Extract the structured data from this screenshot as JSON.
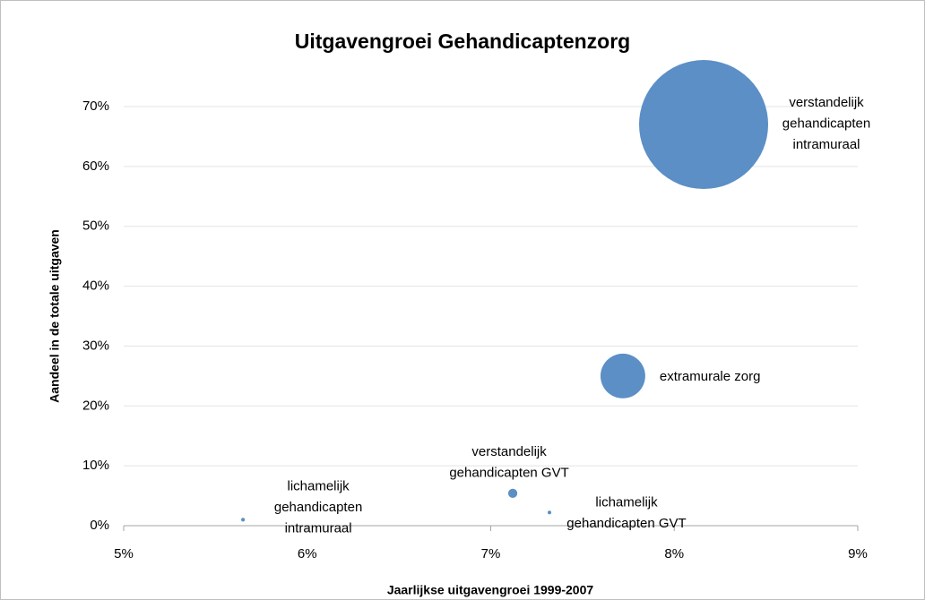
{
  "chart_data": {
    "type": "bubble",
    "title": "Uitgavengroei Gehandicaptenzorg",
    "x_label": "Jaarlijkse uitgavengroei 1999-2007",
    "y_label": "Aandeel in de totale uitgaven",
    "color": "#5b8fc6",
    "grid": true,
    "xlim": [
      5,
      9
    ],
    "ylim": [
      0,
      70
    ],
    "xticks": [
      {
        "value": 5,
        "label": "5%"
      },
      {
        "value": 6,
        "label": "6%"
      },
      {
        "value": 7,
        "label": "7%"
      },
      {
        "value": 8,
        "label": "8%"
      },
      {
        "value": 9,
        "label": "9%"
      }
    ],
    "yticks": [
      {
        "value": 0,
        "label": "0%"
      },
      {
        "value": 10,
        "label": "10%"
      },
      {
        "value": 20,
        "label": "20%"
      },
      {
        "value": 30,
        "label": "30%"
      },
      {
        "value": 40,
        "label": "40%"
      },
      {
        "value": 50,
        "label": "50%"
      },
      {
        "value": 60,
        "label": "60%"
      },
      {
        "value": 70,
        "label": "70%"
      }
    ],
    "labels": [
      [
        "lichamelijk",
        "gehandicapten",
        "intramuraal"
      ],
      [
        "verstandelijk",
        "gehandicapten GVT"
      ],
      [
        "lichamelijk",
        "gehandicapten GVT"
      ],
      [
        "extramurale zorg"
      ],
      [
        "verstandelijk",
        "gehandicapten",
        "intramuraal"
      ]
    ],
    "x": [
      5.65,
      7.12,
      7.32,
      7.72,
      8.16
    ],
    "values": [
      1,
      5.4,
      2.2,
      25,
      67
    ],
    "sizes": [
      0.08,
      0.5,
      0.08,
      12,
      100
    ]
  }
}
